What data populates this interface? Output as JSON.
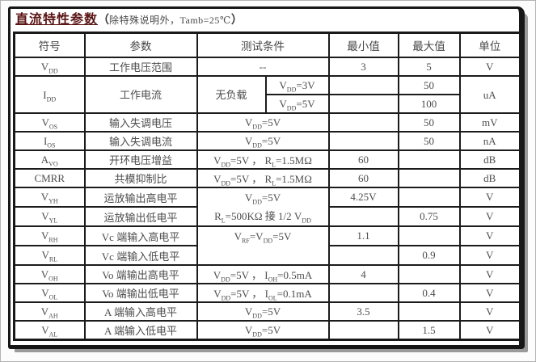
{
  "title": {
    "main": "直流特性参数",
    "open": "（",
    "note": "除特殊说明外，Tamb=25℃",
    "close": "）"
  },
  "table": {
    "headers": {
      "symbol": "符号",
      "param": "参数",
      "condition": "测试条件",
      "min": "最小值",
      "max": "最大值",
      "unit": "单位"
    },
    "rows": [
      {
        "sym": "V~DD~",
        "param": "工作电压范围",
        "cond": "--",
        "min": "3",
        "max": "5",
        "unit": "V"
      },
      {
        "sym": "I~DD~",
        "param": "工作电流",
        "cond_left": "无负载",
        "cond": "V~DD~=3V",
        "min": "",
        "max": "50",
        "unit": "uA"
      },
      {
        "cond": "V~DD~=5V",
        "min": "",
        "max": "100"
      },
      {
        "sym": "V~OS~",
        "param": "输入失调电压",
        "cond": "V~DD~=5V",
        "min": "",
        "max": "50",
        "unit": "mV"
      },
      {
        "sym": "I~OS~",
        "param": "输入失调电流",
        "cond": "V~DD~=5V",
        "min": "",
        "max": "50",
        "unit": "nA"
      },
      {
        "sym": "A~VO~",
        "param": "开环电压增益",
        "cond": "V~DD~=5V ， R~L~=1.5MΩ",
        "min": "60",
        "max": "",
        "unit": "dB"
      },
      {
        "sym": "CMRR",
        "param": "共模抑制比",
        "cond": "V~DD~=5V ， R~L~=1.5MΩ",
        "min": "60",
        "max": "",
        "unit": "dB"
      },
      {
        "sym": "V~YH~",
        "param": "运放输出高电平",
        "cond1": "V~DD~=5V",
        "cond2": "R~L~=500KΩ 接 1/2 V~DD~",
        "min": "4.25V",
        "max": "",
        "unit": "V"
      },
      {
        "sym": "V~YL~",
        "param": "运放输出低电平",
        "min": "",
        "max": "0.75",
        "unit": "V"
      },
      {
        "sym": "V~RH~",
        "param": "Vc 端输入高电平",
        "cond1": "V~RF~=V~DD~=5V",
        "cond2": "",
        "min": "1.1",
        "max": "",
        "unit": "V"
      },
      {
        "sym": "V~RL~",
        "param": "Vc 端输入低电平",
        "min": "",
        "max": "0.9",
        "unit": "V"
      },
      {
        "sym": "V~OH~",
        "param": "Vo 端输出高电平",
        "cond": "V~DD~=5V ， I~OH~=0.5mA",
        "min": "4",
        "max": "",
        "unit": "V"
      },
      {
        "sym": "V~OL~",
        "param": "Vo 端输出低电平",
        "cond": "V~DD~=5V ， I~OL~=0.1mA",
        "min": "",
        "max": "0.4",
        "unit": "V"
      },
      {
        "sym": "V~AH~",
        "param": "A 端输入高电平",
        "cond": "V~DD~=5V",
        "min": "3.5",
        "max": "",
        "unit": "V"
      },
      {
        "sym": "V~AL~",
        "param": "A 端输入低电平",
        "cond": "V~DD~=5V",
        "min": "",
        "max": "1.5",
        "unit": "V"
      }
    ]
  }
}
